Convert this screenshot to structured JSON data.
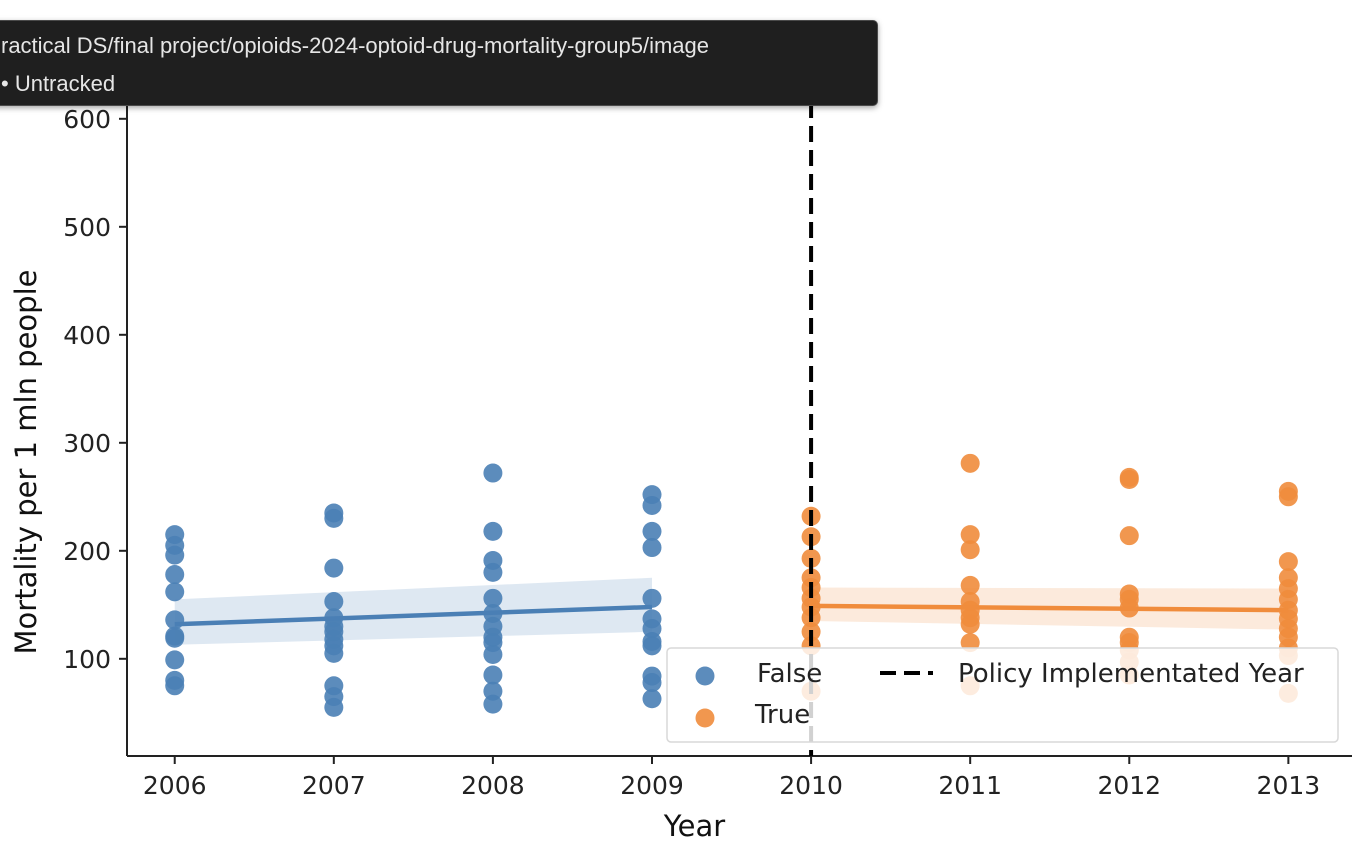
{
  "tooltip": {
    "path": "ractical DS/final project/opioids-2024-optoid-drug-mortality-group5/image",
    "status": "• Untracked"
  },
  "colors": {
    "false_series": "#4a7fb5",
    "true_series": "#f08c3c",
    "policy_line": "#000000"
  },
  "chart_data": {
    "type": "scatter",
    "title": "",
    "xlabel": "Year",
    "ylabel": "Mortality per 1 mln people",
    "xlim": [
      2005.7,
      2013.4
    ],
    "ylim": [
      10,
      610
    ],
    "xticks": [
      2006,
      2007,
      2008,
      2009,
      2010,
      2011,
      2012,
      2013
    ],
    "yticks": [
      100,
      200,
      300,
      400,
      500,
      600
    ],
    "policy_year": 2010,
    "policy_label": "Policy Implementated Year",
    "legend_position": "lower right",
    "series": [
      {
        "name": "False",
        "color": "#4a7fb5",
        "points": [
          [
            2006,
            215
          ],
          [
            2006,
            205
          ],
          [
            2006,
            196
          ],
          [
            2006,
            178
          ],
          [
            2006,
            162
          ],
          [
            2006,
            136
          ],
          [
            2006,
            121
          ],
          [
            2006,
            119
          ],
          [
            2006,
            99
          ],
          [
            2006,
            80
          ],
          [
            2006,
            75
          ],
          [
            2007,
            235
          ],
          [
            2007,
            230
          ],
          [
            2007,
            184
          ],
          [
            2007,
            153
          ],
          [
            2007,
            138
          ],
          [
            2007,
            130
          ],
          [
            2007,
            125
          ],
          [
            2007,
            118
          ],
          [
            2007,
            112
          ],
          [
            2007,
            105
          ],
          [
            2007,
            75
          ],
          [
            2007,
            65
          ],
          [
            2007,
            55
          ],
          [
            2008,
            272
          ],
          [
            2008,
            218
          ],
          [
            2008,
            191
          ],
          [
            2008,
            180
          ],
          [
            2008,
            156
          ],
          [
            2008,
            142
          ],
          [
            2008,
            130
          ],
          [
            2008,
            120
          ],
          [
            2008,
            115
          ],
          [
            2008,
            104
          ],
          [
            2008,
            85
          ],
          [
            2008,
            70
          ],
          [
            2008,
            58
          ],
          [
            2009,
            252
          ],
          [
            2009,
            242
          ],
          [
            2009,
            218
          ],
          [
            2009,
            203
          ],
          [
            2009,
            156
          ],
          [
            2009,
            137
          ],
          [
            2009,
            128
          ],
          [
            2009,
            116
          ],
          [
            2009,
            112
          ],
          [
            2009,
            84
          ],
          [
            2009,
            78
          ],
          [
            2009,
            63
          ]
        ],
        "trend": [
          [
            2006,
            132
          ],
          [
            2009,
            148
          ]
        ],
        "ci": {
          "x": [
            2006,
            2009
          ],
          "lower": [
            113,
            125
          ],
          "upper": [
            155,
            175
          ]
        }
      },
      {
        "name": "True",
        "color": "#f08c3c",
        "points": [
          [
            2010,
            232
          ],
          [
            2010,
            213
          ],
          [
            2010,
            193
          ],
          [
            2010,
            175
          ],
          [
            2010,
            166
          ],
          [
            2010,
            156
          ],
          [
            2010,
            148
          ],
          [
            2010,
            138
          ],
          [
            2010,
            125
          ],
          [
            2010,
            112
          ],
          [
            2010,
            70
          ],
          [
            2011,
            281
          ],
          [
            2011,
            215
          ],
          [
            2011,
            201
          ],
          [
            2011,
            168
          ],
          [
            2011,
            153
          ],
          [
            2011,
            145
          ],
          [
            2011,
            138
          ],
          [
            2011,
            132
          ],
          [
            2011,
            115
          ],
          [
            2011,
            75
          ],
          [
            2012,
            268
          ],
          [
            2012,
            266
          ],
          [
            2012,
            214
          ],
          [
            2012,
            160
          ],
          [
            2012,
            155
          ],
          [
            2012,
            147
          ],
          [
            2012,
            120
          ],
          [
            2012,
            115
          ],
          [
            2012,
            108
          ],
          [
            2012,
            97
          ],
          [
            2012,
            85
          ],
          [
            2013,
            255
          ],
          [
            2013,
            250
          ],
          [
            2013,
            190
          ],
          [
            2013,
            175
          ],
          [
            2013,
            165
          ],
          [
            2013,
            155
          ],
          [
            2013,
            145
          ],
          [
            2013,
            137
          ],
          [
            2013,
            128
          ],
          [
            2013,
            120
          ],
          [
            2013,
            110
          ],
          [
            2013,
            103
          ],
          [
            2013,
            68
          ]
        ],
        "trend": [
          [
            2010,
            149
          ],
          [
            2013,
            145
          ]
        ],
        "ci": {
          "x": [
            2010,
            2013
          ],
          "lower": [
            135,
            127
          ],
          "upper": [
            166,
            165
          ]
        }
      }
    ]
  }
}
